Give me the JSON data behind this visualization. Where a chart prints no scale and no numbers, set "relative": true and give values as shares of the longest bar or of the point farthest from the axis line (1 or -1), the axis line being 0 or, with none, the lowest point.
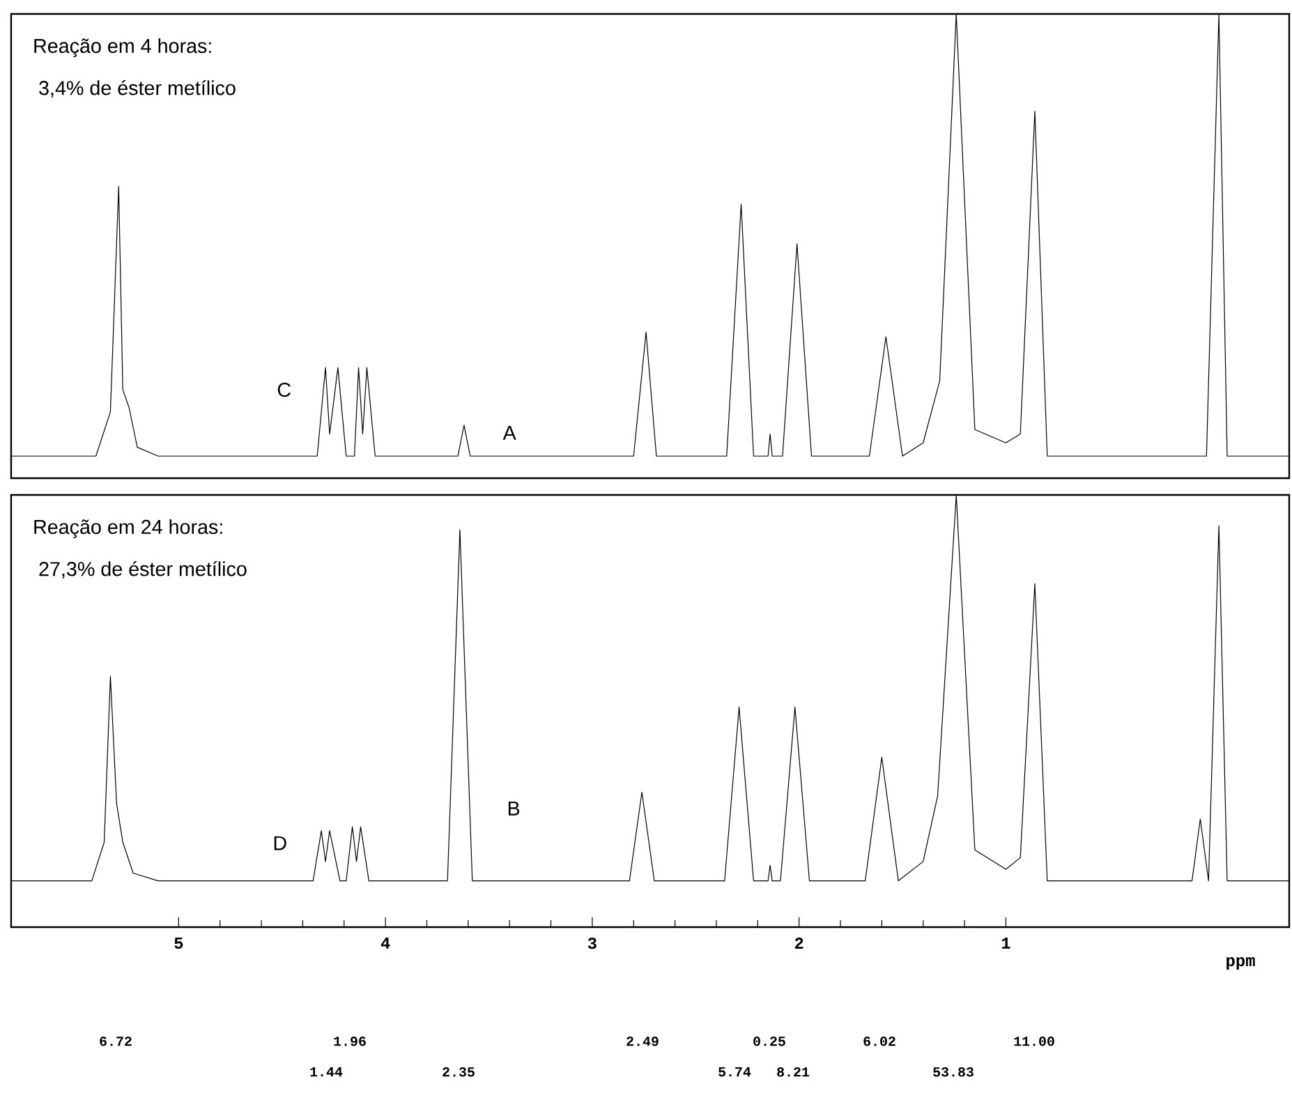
{
  "chart_data": [
    {
      "type": "line",
      "relative": true,
      "title": "Reação em 4 horas:",
      "subtitle": "3,4% de éster metílico",
      "xlim": [
        5.81,
        -0.37
      ],
      "tick_labels": false,
      "xticks": [
        5,
        4,
        3,
        2,
        1
      ],
      "annotations": [
        {
          "text": "C",
          "x": 4.29,
          "y": 0.2
        },
        {
          "text": "A",
          "x": 3.62,
          "y": 0.07
        }
      ],
      "series": [
        {
          "color": "#000000",
          "x": [
            5.81,
            5.4,
            5.33,
            5.29,
            5.27,
            5.24,
            5.2,
            5.1,
            4.33,
            4.29,
            4.27,
            4.23,
            4.19,
            4.15,
            4.13,
            4.11,
            4.09,
            4.05,
            3.65,
            3.62,
            3.59,
            2.8,
            2.74,
            2.69,
            2.35,
            2.28,
            2.22,
            2.15,
            2.14,
            2.13,
            2.08,
            2.01,
            1.94,
            1.66,
            1.58,
            1.5,
            1.4,
            1.32,
            1.24,
            1.15,
            1.0,
            0.93,
            0.86,
            0.8,
            0.03,
            -0.03,
            -0.07,
            -0.37
          ],
          "values": [
            0,
            0,
            0.1,
            0.61,
            0.15,
            0.11,
            0.02,
            0,
            0,
            0.2,
            0.05,
            0.2,
            0,
            0,
            0.2,
            0.05,
            0.2,
            0,
            0,
            0.07,
            0,
            0,
            0.28,
            0,
            0,
            0.57,
            0,
            0,
            0.05,
            0,
            0,
            0.48,
            0,
            0,
            0.27,
            0,
            0.03,
            0.17,
            1,
            0.06,
            0.03,
            0.05,
            0.78,
            0,
            0,
            1,
            0,
            0
          ]
        }
      ]
    },
    {
      "type": "line",
      "relative": true,
      "title": "Reação em 24 horas:",
      "subtitle": "27,3% de éster metílico",
      "xlabel": "ppm",
      "xlim": [
        5.81,
        -0.37
      ],
      "xticks": [
        5,
        4,
        3,
        2,
        1
      ],
      "annotations": [
        {
          "text": "D",
          "x": 4.31,
          "y": 0.13
        },
        {
          "text": "B",
          "x": 3.6,
          "y": 0.25
        },
        "6.72",
        "1.44",
        "1.96",
        "2.35",
        "2.49",
        "5.74",
        "0.25",
        "8.21",
        "6.02",
        "53.83",
        "11.00"
      ],
      "series": [
        {
          "color": "#000000",
          "x": [
            5.81,
            5.42,
            5.36,
            5.33,
            5.3,
            5.27,
            5.22,
            5.1,
            4.35,
            4.31,
            4.29,
            4.27,
            4.22,
            4.19,
            4.16,
            4.14,
            4.12,
            4.08,
            3.7,
            3.64,
            3.58,
            2.82,
            2.76,
            2.7,
            2.36,
            2.29,
            2.22,
            2.15,
            2.14,
            2.13,
            2.09,
            2.02,
            1.95,
            1.68,
            1.6,
            1.52,
            1.4,
            1.33,
            1.24,
            1.15,
            1.0,
            0.93,
            0.86,
            0.8,
            0.1,
            0.06,
            0.02,
            -0.03,
            -0.07,
            -0.37
          ],
          "values": [
            0,
            0,
            0.1,
            0.53,
            0.2,
            0.1,
            0.02,
            0,
            0,
            0.13,
            0.05,
            0.13,
            0,
            0,
            0.14,
            0.05,
            0.14,
            0,
            0,
            0.91,
            0,
            0,
            0.23,
            0,
            0,
            0.45,
            0,
            0,
            0.04,
            0,
            0,
            0.45,
            0,
            0,
            0.32,
            0,
            0.05,
            0.22,
            1,
            0.08,
            0.03,
            0.06,
            0.77,
            0,
            0,
            0.16,
            0,
            0.92,
            0,
            0
          ]
        }
      ]
    }
  ]
}
